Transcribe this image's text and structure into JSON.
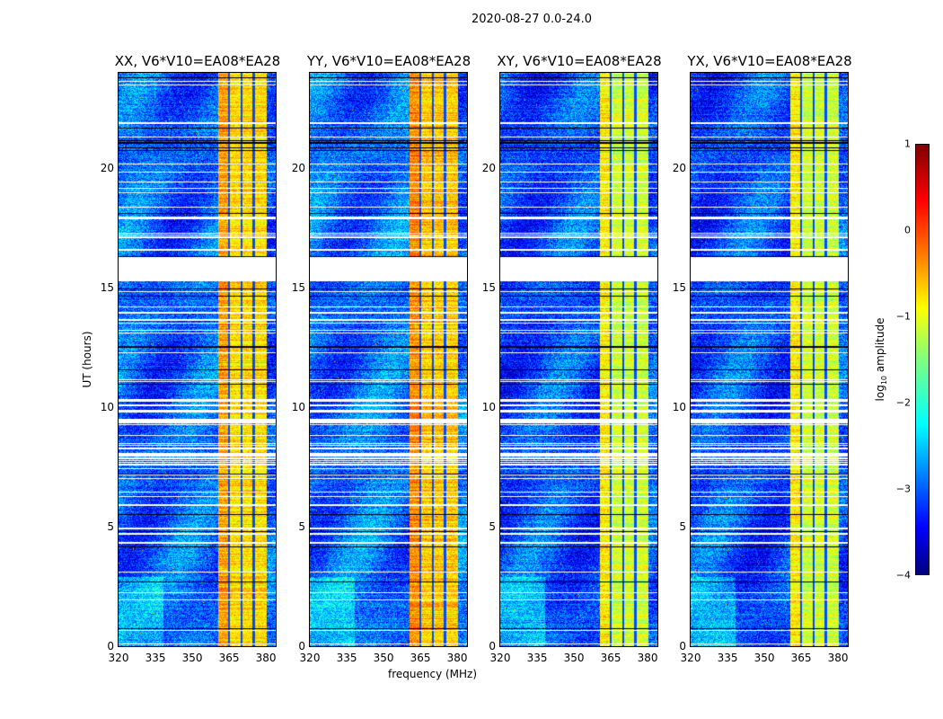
{
  "chart_data": {
    "type": "heatmap",
    "title": "2020-08-27 0.0-24.0",
    "xlabel": "frequency (MHz)",
    "ylabel": "UT (hours)",
    "xlim": [
      320,
      384
    ],
    "ylim": [
      0,
      24
    ],
    "xticks": [
      "320",
      "335",
      "350",
      "365",
      "380"
    ],
    "xtick_values": [
      320,
      335,
      350,
      365,
      380
    ],
    "yticks": [
      "0",
      "5",
      "10",
      "15",
      "20"
    ],
    "ytick_values": [
      0,
      5,
      10,
      15,
      20
    ],
    "panels": [
      {
        "title": "XX, V6*V10=EA08*EA28",
        "band_level": -0.4,
        "base_level": -2.9
      },
      {
        "title": "YY, V6*V10=EA08*EA28",
        "band_level": -0.3,
        "base_level": -2.85
      },
      {
        "title": "XY, V6*V10=EA08*EA28",
        "band_level": -0.8,
        "base_level": -3.0
      },
      {
        "title": "YX, V6*V10=EA08*EA28",
        "band_level": -0.8,
        "base_level": -3.0
      }
    ],
    "bright_band_mhz": [
      360.5,
      380
    ],
    "flagged_gap_hours": [
      15.3,
      16.3
    ],
    "colorbar": {
      "label": "log10 amplitude",
      "label_main": "log",
      "label_sub": "10",
      "label_rest": " amplitude",
      "range": [
        -4,
        1
      ],
      "ticks": [
        "1",
        "0",
        "−1",
        "−2",
        "−3",
        "−4"
      ],
      "tick_values": [
        1,
        0,
        -1,
        -2,
        -3,
        -4
      ],
      "colormap": "jet"
    }
  }
}
